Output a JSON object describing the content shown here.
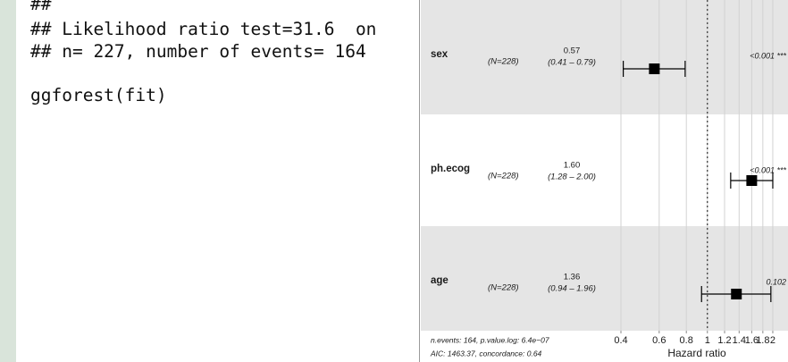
{
  "code_lines": [
    "##",
    "## Likelihood ratio test=31.6  on",
    "## n= 227, number of events= 164",
    "ggforest(fit)"
  ],
  "chart_data": {
    "type": "forest",
    "categories": [
      "sex",
      "ph.ecog",
      "age"
    ],
    "n_labels": [
      "(N=228)",
      "(N=228)",
      "(N=228)"
    ],
    "values": [
      0.57,
      1.6,
      1.36
    ],
    "value_labels": [
      "0.57",
      "1.60",
      "1.36"
    ],
    "lower": [
      0.41,
      1.28,
      0.94
    ],
    "upper": [
      0.79,
      2.0,
      1.96
    ],
    "ci_labels": [
      "(0.41 – 0.79)",
      "(1.28 – 2.00)",
      "(0.94 – 1.96)"
    ],
    "p_labels": [
      "<0.001 ***",
      "<0.001 ***",
      "0.102"
    ],
    "xlabel": "Hazard ratio",
    "xlog": true,
    "xlim": [
      0.4,
      2.35
    ],
    "xticks": [
      0.4,
      0.6,
      0.8,
      1,
      1.2,
      1.4,
      1.6,
      1.8,
      2
    ],
    "reference": 1,
    "footnotes": [
      "n.events: 164, p.value.log: 6.4e−07",
      "AIC: 1463.37, concordance: 0.64"
    ],
    "band_color": "#e5e5e5",
    "grid": true
  }
}
